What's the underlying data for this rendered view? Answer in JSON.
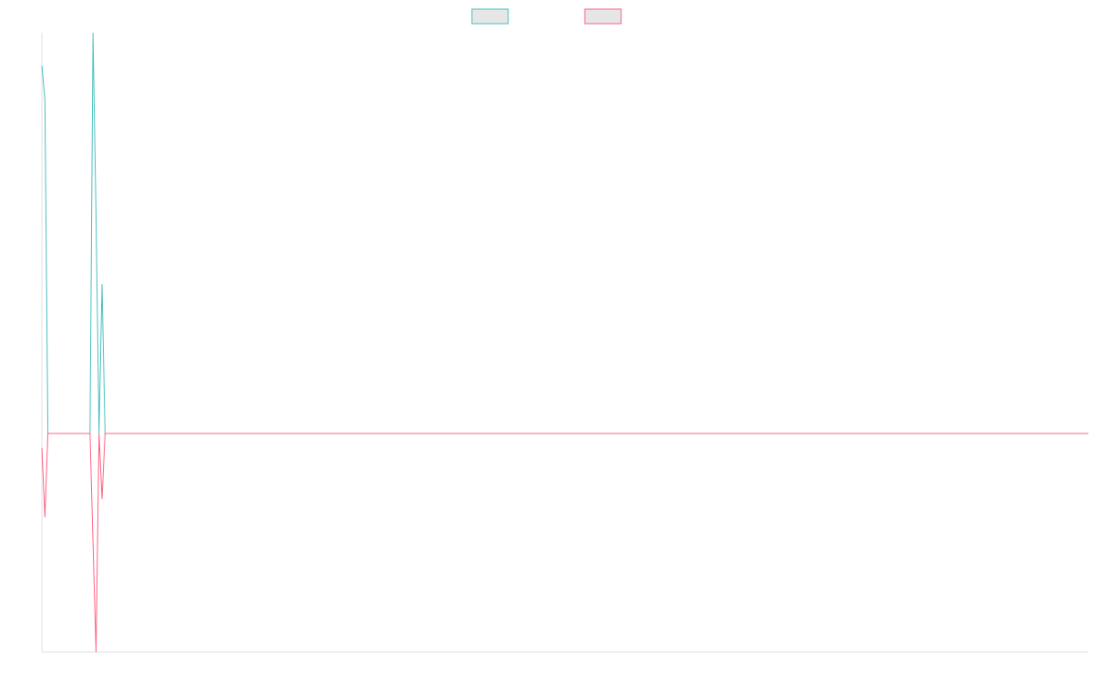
{
  "chart_data": {
    "type": "line",
    "x": [
      0,
      1,
      2,
      16,
      17,
      18,
      19,
      20,
      21,
      348
    ],
    "xlim": [
      0,
      348
    ],
    "ylim": [
      -0.6,
      1.1
    ],
    "legend": "top",
    "series": [
      {
        "color": "#4bc0c0",
        "values": [
          1.01,
          0.915,
          0,
          0,
          1.1,
          0.6,
          0,
          0.41,
          0,
          0
        ]
      },
      {
        "color": "#ff6384",
        "values": [
          -0.04,
          -0.23,
          0,
          0,
          -0.3,
          -0.6,
          0,
          -0.18,
          0,
          0
        ]
      }
    ]
  }
}
